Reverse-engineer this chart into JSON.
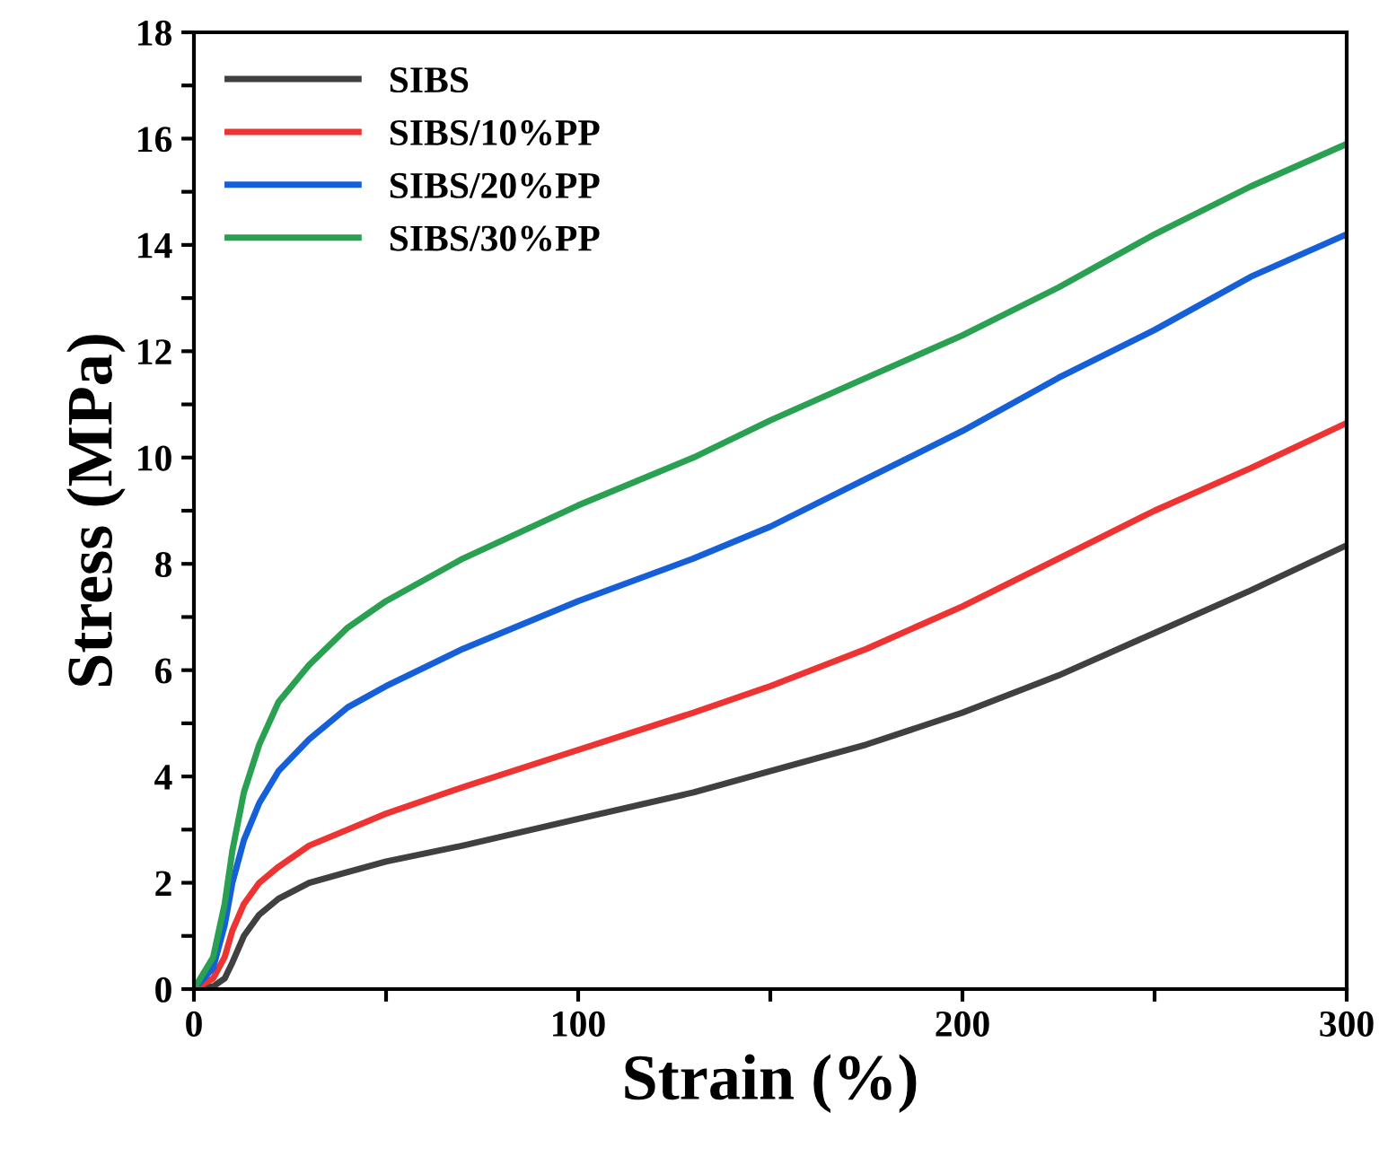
{
  "chart_data": {
    "type": "line",
    "xlabel": "Strain (%)",
    "ylabel": "Stress (MPa)",
    "x": [
      0,
      5,
      8,
      10,
      13,
      17,
      22,
      30,
      40,
      50,
      70,
      100,
      130,
      150,
      175,
      200,
      225,
      250,
      275,
      300
    ],
    "xlim": [
      0,
      300
    ],
    "xticks": [
      0,
      {
        "value": 50,
        "label": null
      },
      100,
      {
        "value": 150,
        "label": null
      },
      200,
      {
        "value": 250,
        "label": null
      },
      300
    ],
    "ylim": [
      0,
      18
    ],
    "yticks": [
      0,
      {
        "value": 1,
        "label": null
      },
      2,
      {
        "value": 3,
        "label": null
      },
      4,
      {
        "value": 5,
        "label": null
      },
      6,
      {
        "value": 7,
        "label": null
      },
      8,
      {
        "value": 9,
        "label": null
      },
      10,
      {
        "value": 11,
        "label": null
      },
      12,
      {
        "value": 13,
        "label": null
      },
      14,
      {
        "value": 15,
        "label": null
      },
      16,
      {
        "value": 17,
        "label": null
      },
      18
    ],
    "grid": false,
    "legend": "top left",
    "marker": "none",
    "line_style": "solid",
    "series": [
      {
        "name": "SIBS",
        "color": "#404040",
        "values": [
          0,
          0.05,
          0.2,
          0.5,
          1.0,
          1.4,
          1.7,
          2.0,
          2.2,
          2.4,
          2.7,
          3.2,
          3.7,
          4.1,
          4.6,
          5.2,
          5.9,
          6.7,
          7.5,
          8.35
        ]
      },
      {
        "name": "SIBS/10%PP",
        "color": "#ee3333",
        "values": [
          0,
          0.2,
          0.6,
          1.1,
          1.6,
          2.0,
          2.3,
          2.7,
          3.0,
          3.3,
          3.8,
          4.5,
          5.2,
          5.7,
          6.4,
          7.2,
          8.1,
          9.0,
          9.8,
          10.65
        ]
      },
      {
        "name": "SIBS/20%PP",
        "color": "#1560d8",
        "values": [
          0,
          0.4,
          1.2,
          2.0,
          2.8,
          3.5,
          4.1,
          4.7,
          5.3,
          5.7,
          6.4,
          7.3,
          8.1,
          8.7,
          9.6,
          10.5,
          11.5,
          12.4,
          13.4,
          14.2
        ]
      },
      {
        "name": "SIBS/30%PP",
        "color": "#2aa052",
        "values": [
          0,
          0.6,
          1.6,
          2.6,
          3.7,
          4.6,
          5.4,
          6.1,
          6.8,
          7.3,
          8.1,
          9.1,
          10.0,
          10.7,
          11.5,
          12.3,
          13.2,
          14.2,
          15.1,
          15.9
        ]
      }
    ]
  }
}
